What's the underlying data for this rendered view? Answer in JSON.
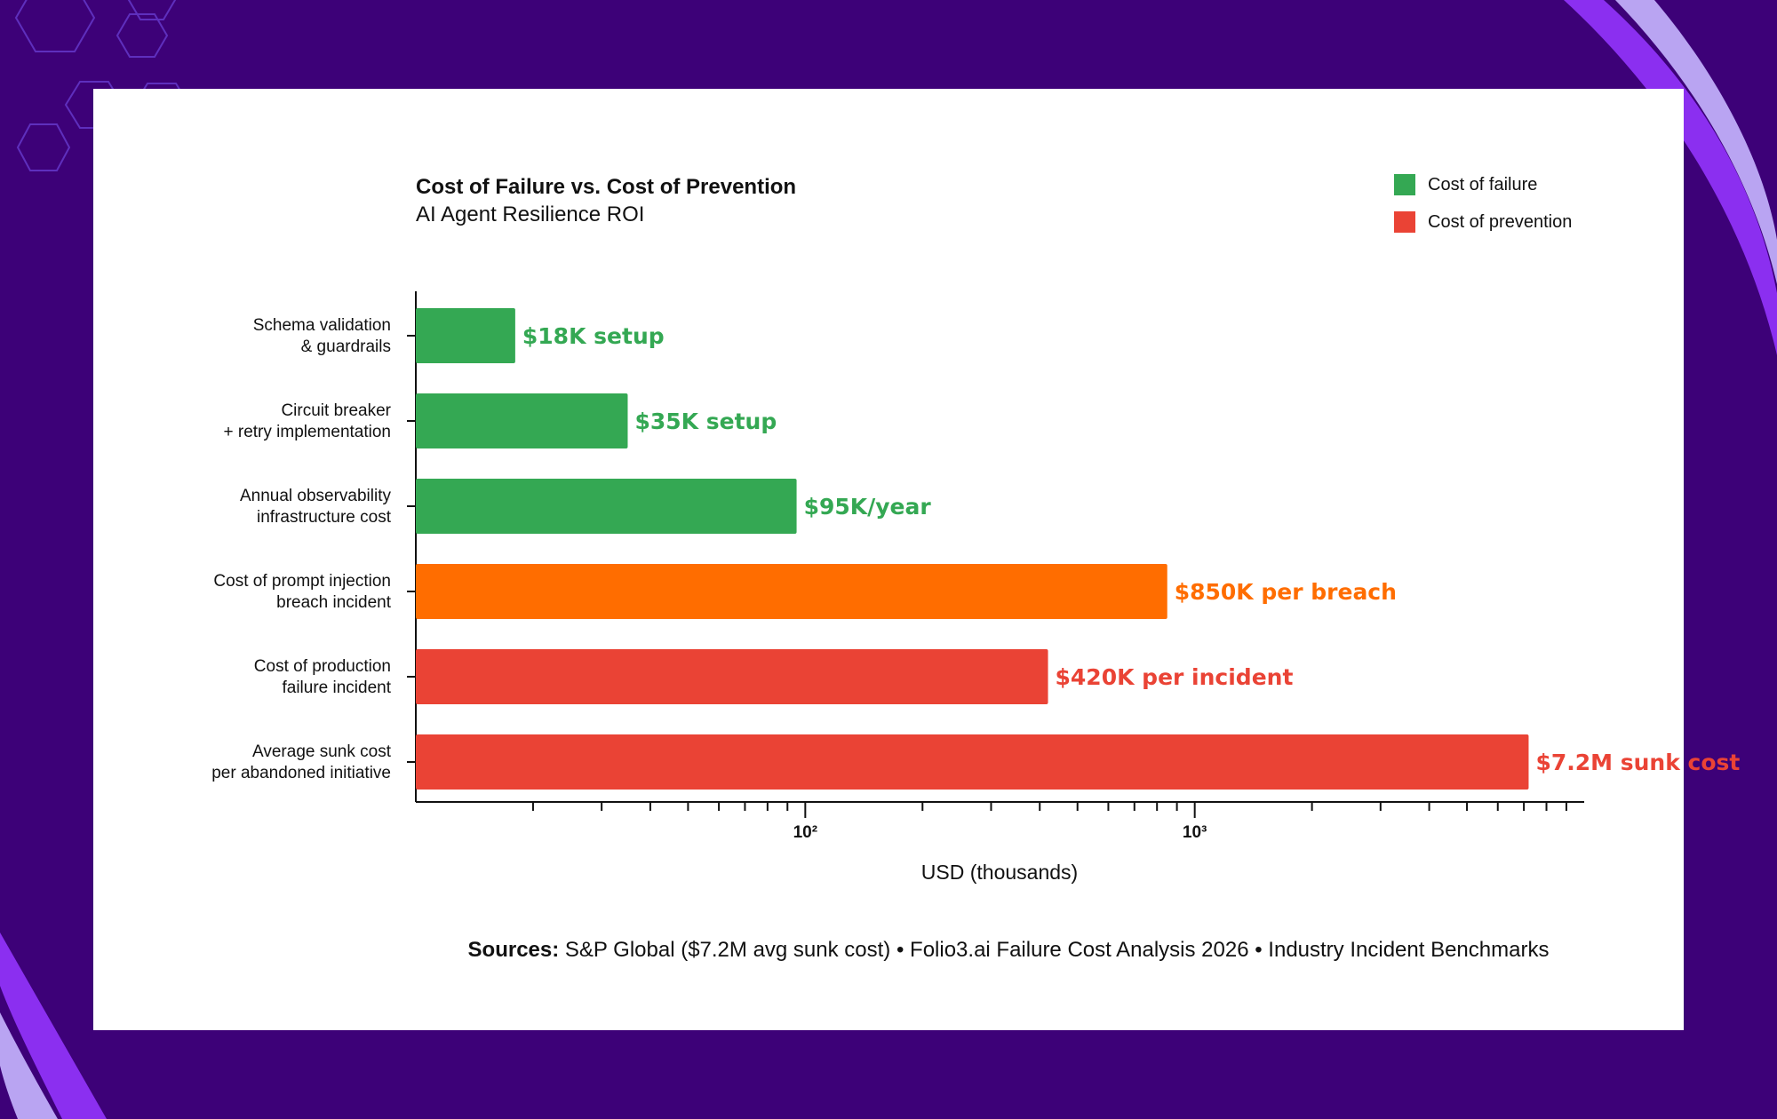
{
  "colors": {
    "background": "#3d0178",
    "card": "#ffffff",
    "accent_purple": "#8b2ff0",
    "accent_lavender": "#b9a4f2",
    "green": "#34a853",
    "red": "#ea4335",
    "orange": "#ff6d00"
  },
  "chart_data": {
    "type": "bar",
    "orientation": "horizontal",
    "title": "Cost of Failure vs. Cost of Prevention",
    "subtitle": "AI Agent Resilience ROI",
    "xlabel": "USD (thousands)",
    "ylabel": "",
    "xscale": "log",
    "xlim": [
      10,
      10000
    ],
    "xticks": [
      {
        "value": 100,
        "label": "10²"
      },
      {
        "value": 1000,
        "label": "10³"
      }
    ],
    "grid": false,
    "legend_position": "top-right",
    "legend": [
      {
        "label": "Cost of failure",
        "color": "#34a853"
      },
      {
        "label": "Cost of prevention",
        "color": "#ea4335"
      }
    ],
    "categories": [
      [
        "Schema validation",
        "& guardrails"
      ],
      [
        "Circuit breaker",
        "+ retry implementation"
      ],
      [
        "Annual observability",
        "infrastructure cost"
      ],
      [
        "Cost of prompt injection",
        "breach incident"
      ],
      [
        "Cost of production",
        "failure incident"
      ],
      [
        "Average sunk cost",
        "per abandoned initiative"
      ]
    ],
    "values": [
      18,
      35,
      95,
      850,
      420,
      7200
    ],
    "bar_colors": [
      "#34a853",
      "#34a853",
      "#34a853",
      "#ff6d00",
      "#ea4335",
      "#ea4335"
    ],
    "data_labels": [
      "$18K setup",
      "$35K setup",
      "$95K/year",
      "$850K per breach",
      "$420K per incident",
      "$7.2M sunk cost"
    ]
  },
  "sources": {
    "heading": "Sources:",
    "text": " S&P Global ($7.2M avg sunk cost) • Folio3.ai Failure Cost Analysis 2026 • Industry Incident Benchmarks"
  }
}
